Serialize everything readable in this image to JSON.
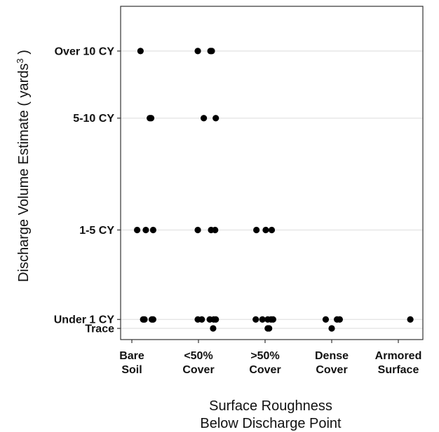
{
  "chart_data": {
    "type": "scatter",
    "title": "",
    "xlabel": [
      "Surface Roughness",
      "Below Discharge Point"
    ],
    "ylabel": "Discharge Volume Estimate ( yards3 )",
    "ylabel_parts": {
      "prefix": "Discharge Volume Estimate ( yards",
      "superscript": "3",
      "suffix": " )"
    },
    "x_categories": [
      {
        "lines": [
          "Bare",
          "Soil"
        ]
      },
      {
        "lines": [
          "<50%",
          "Cover"
        ]
      },
      {
        "lines": [
          ">50%",
          "Cover"
        ]
      },
      {
        "lines": [
          "Dense",
          "Cover"
        ]
      },
      {
        "lines": [
          "Armored",
          "Surface"
        ]
      }
    ],
    "y_categories": [
      "Trace",
      "Under 1 CY",
      "1-5 CY",
      "5-10 CY",
      "Over 10 CY"
    ],
    "y_values": [
      0.0,
      0.2,
      2.2,
      4.7,
      6.2
    ],
    "ylim": [
      -0.25,
      7.2
    ],
    "grid": true,
    "points": [
      {
        "x": 1,
        "x_jitter": 0.13,
        "y": "Over 10 CY"
      },
      {
        "x": 2,
        "x_jitter": -0.01,
        "y": "Over 10 CY"
      },
      {
        "x": 2,
        "x_jitter": 0.18,
        "y": "Over 10 CY"
      },
      {
        "x": 2,
        "x_jitter": 0.2,
        "y": "Over 10 CY"
      },
      {
        "x": 1,
        "x_jitter": 0.27,
        "y": "5-10 CY"
      },
      {
        "x": 1,
        "x_jitter": 0.29,
        "y": "5-10 CY"
      },
      {
        "x": 2,
        "x_jitter": 0.08,
        "y": "5-10 CY"
      },
      {
        "x": 2,
        "x_jitter": 0.26,
        "y": "5-10 CY"
      },
      {
        "x": 1,
        "x_jitter": 0.08,
        "y": "1-5 CY"
      },
      {
        "x": 1,
        "x_jitter": 0.21,
        "y": "1-5 CY"
      },
      {
        "x": 1,
        "x_jitter": 0.32,
        "y": "1-5 CY"
      },
      {
        "x": 2,
        "x_jitter": -0.01,
        "y": "1-5 CY"
      },
      {
        "x": 2,
        "x_jitter": 0.19,
        "y": "1-5 CY"
      },
      {
        "x": 2,
        "x_jitter": 0.25,
        "y": "1-5 CY"
      },
      {
        "x": 3,
        "x_jitter": -0.13,
        "y": "1-5 CY"
      },
      {
        "x": 3,
        "x_jitter": 0.01,
        "y": "1-5 CY"
      },
      {
        "x": 3,
        "x_jitter": 0.1,
        "y": "1-5 CY"
      },
      {
        "x": 1,
        "x_jitter": 0.17,
        "y": "Under 1 CY"
      },
      {
        "x": 1,
        "x_jitter": 0.19,
        "y": "Under 1 CY"
      },
      {
        "x": 1,
        "x_jitter": 0.3,
        "y": "Under 1 CY"
      },
      {
        "x": 1,
        "x_jitter": 0.32,
        "y": "Under 1 CY"
      },
      {
        "x": 2,
        "x_jitter": -0.01,
        "y": "Under 1 CY"
      },
      {
        "x": 2,
        "x_jitter": 0.05,
        "y": "Under 1 CY"
      },
      {
        "x": 2,
        "x_jitter": 0.17,
        "y": "Under 1 CY"
      },
      {
        "x": 2,
        "x_jitter": 0.23,
        "y": "Under 1 CY"
      },
      {
        "x": 2,
        "x_jitter": 0.26,
        "y": "Under 1 CY"
      },
      {
        "x": 3,
        "x_jitter": -0.14,
        "y": "Under 1 CY"
      },
      {
        "x": 3,
        "x_jitter": -0.04,
        "y": "Under 1 CY"
      },
      {
        "x": 3,
        "x_jitter": 0.04,
        "y": "Under 1 CY"
      },
      {
        "x": 3,
        "x_jitter": 0.09,
        "y": "Under 1 CY"
      },
      {
        "x": 3,
        "x_jitter": 0.12,
        "y": "Under 1 CY"
      },
      {
        "x": 4,
        "x_jitter": -0.09,
        "y": "Under 1 CY"
      },
      {
        "x": 4,
        "x_jitter": 0.08,
        "y": "Under 1 CY"
      },
      {
        "x": 4,
        "x_jitter": 0.12,
        "y": "Under 1 CY"
      },
      {
        "x": 5,
        "x_jitter": 0.18,
        "y": "Under 1 CY"
      },
      {
        "x": 2,
        "x_jitter": 0.22,
        "y": "Trace"
      },
      {
        "x": 3,
        "x_jitter": 0.04,
        "y": "Trace"
      },
      {
        "x": 3,
        "x_jitter": 0.06,
        "y": "Trace"
      },
      {
        "x": 4,
        "x_jitter": 0.0,
        "y": "Trace"
      }
    ]
  }
}
